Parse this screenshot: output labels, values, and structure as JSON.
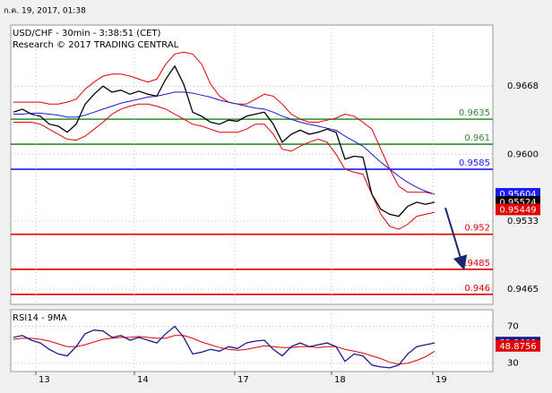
{
  "header": {
    "timestamp": "ก.ค. 19, 2017, 01:38"
  },
  "chart_data": [
    {
      "type": "line",
      "title": "USD/CHF - 30min - 3:38:51 (CET)",
      "subtitle": "Research © 2017 TRADING CENTRAL",
      "xlim": [
        -0.3,
        53.5
      ],
      "ylim": [
        0.945,
        0.9729
      ],
      "yticks": [
        0.9465,
        0.9533,
        {
          "value": 0.96,
          "label": "0.9600"
        },
        0.9668
      ],
      "grid": true,
      "x": [
        0,
        1,
        2,
        3,
        4,
        5,
        6,
        7,
        8,
        9,
        10,
        11,
        12,
        13,
        14,
        15,
        16,
        17,
        18,
        19,
        20,
        21,
        22,
        23,
        24,
        25,
        26,
        27,
        28,
        29,
        30,
        31,
        32,
        33,
        34,
        35,
        36,
        37,
        38,
        39,
        40,
        41,
        42,
        43,
        44,
        45,
        46,
        47
      ],
      "series": [
        {
          "color": "#e00000",
          "values": [
            0.9652,
            0.9652,
            0.9652,
            0.9652,
            0.965,
            0.965,
            0.9652,
            0.9655,
            0.9665,
            0.9672,
            0.9678,
            0.968,
            0.968,
            0.9678,
            0.9675,
            0.9672,
            0.9675,
            0.969,
            0.97,
            0.9702,
            0.97,
            0.969,
            0.967,
            0.9658,
            0.9652,
            0.965,
            0.965,
            0.9655,
            0.966,
            0.9658,
            0.965,
            0.964,
            0.9635,
            0.9632,
            0.9632,
            0.9634,
            0.9636,
            0.964,
            0.9638,
            0.9632,
            0.9625,
            0.9605,
            0.9585,
            0.9568,
            0.9562,
            0.9562,
            0.9562,
            0.956
          ]
        },
        {
          "color": "#e00000",
          "values": [
            0.9632,
            0.9632,
            0.9632,
            0.963,
            0.9625,
            0.962,
            0.9615,
            0.9614,
            0.9618,
            0.9625,
            0.9632,
            0.964,
            0.9645,
            0.9648,
            0.965,
            0.965,
            0.9648,
            0.9645,
            0.964,
            0.9635,
            0.963,
            0.9628,
            0.9625,
            0.9622,
            0.9622,
            0.9622,
            0.9625,
            0.963,
            0.963,
            0.962,
            0.9605,
            0.9603,
            0.9608,
            0.9612,
            0.9615,
            0.9612,
            0.96,
            0.9585,
            0.9582,
            0.958,
            0.956,
            0.954,
            0.9528,
            0.9525,
            0.953,
            0.9538,
            0.954,
            0.9542
          ]
        },
        {
          "color": "#1a1acc",
          "values": [
            0.964,
            0.964,
            0.9641,
            0.9641,
            0.964,
            0.9639,
            0.9637,
            0.9637,
            0.9639,
            0.9642,
            0.9645,
            0.9648,
            0.9651,
            0.9653,
            0.9655,
            0.9657,
            0.9658,
            0.966,
            0.9662,
            0.9662,
            0.9661,
            0.9659,
            0.9657,
            0.9654,
            0.9652,
            0.965,
            0.9648,
            0.9646,
            0.9645,
            0.9642,
            0.9638,
            0.9635,
            0.9632,
            0.963,
            0.9628,
            0.9626,
            0.9624,
            0.9618,
            0.9613,
            0.9608,
            0.96,
            0.9592,
            0.9585,
            0.9578,
            0.9572,
            0.9567,
            0.9563,
            0.956
          ]
        },
        {
          "color": "#000000",
          "values": [
            0.9642,
            0.9645,
            0.964,
            0.9638,
            0.963,
            0.9628,
            0.9622,
            0.963,
            0.965,
            0.966,
            0.9668,
            0.9662,
            0.9664,
            0.966,
            0.9663,
            0.966,
            0.9658,
            0.9675,
            0.9688,
            0.967,
            0.9642,
            0.9638,
            0.9632,
            0.963,
            0.9634,
            0.9633,
            0.9638,
            0.964,
            0.9642,
            0.963,
            0.9612,
            0.962,
            0.9624,
            0.962,
            0.9622,
            0.9625,
            0.9622,
            0.9595,
            0.9598,
            0.9597,
            0.956,
            0.9545,
            0.954,
            0.9538,
            0.9548,
            0.9552,
            0.955,
            0.9552
          ]
        }
      ],
      "levels": [
        {
          "value": 0.9635,
          "color": "#2e8b2e"
        },
        {
          "value": 0.961,
          "color": "#2e8b2e"
        },
        {
          "value": 0.9585,
          "color": "#1a1aff"
        },
        {
          "value": 0.952,
          "color": "#e00000"
        },
        {
          "value": 0.9485,
          "color": "#e00000"
        },
        {
          "value": 0.946,
          "color": "#e00000"
        }
      ],
      "price_tags": [
        {
          "value": 0.95604,
          "color": "#1a1aff"
        },
        {
          "value": 0.95524,
          "color": "#000000"
        },
        {
          "value": 0.95449,
          "color": "#e00000"
        }
      ]
    },
    {
      "type": "line",
      "title": "RSI14 - 9MA",
      "xlim": [
        -0.3,
        53.5
      ],
      "ylim": [
        21,
        88
      ],
      "yticks": [
        30,
        70
      ],
      "grid": true,
      "xticks": [
        {
          "value": 2.5,
          "label": "13"
        },
        {
          "value": 13.5,
          "label": "14"
        },
        {
          "value": 24.7,
          "label": "17"
        },
        {
          "value": 35.5,
          "label": "18"
        },
        {
          "value": 46.8,
          "label": "19"
        }
      ],
      "x": [
        0,
        1,
        2,
        3,
        4,
        5,
        6,
        7,
        8,
        9,
        10,
        11,
        12,
        13,
        14,
        15,
        16,
        17,
        18,
        19,
        20,
        21,
        22,
        23,
        24,
        25,
        26,
        27,
        28,
        29,
        30,
        31,
        32,
        33,
        34,
        35,
        36,
        37,
        38,
        39,
        40,
        41,
        42,
        43,
        44,
        45,
        46,
        47
      ],
      "series": [
        {
          "color": "#e00000",
          "values": [
            56,
            57,
            57,
            56,
            54,
            51,
            48,
            48,
            50,
            53,
            56,
            57,
            58,
            58,
            59,
            58,
            57,
            57,
            60,
            60,
            57,
            53,
            50,
            47,
            45,
            44,
            45,
            47,
            49,
            48,
            47,
            47,
            48,
            48,
            47,
            48,
            48,
            45,
            43,
            41,
            38,
            35,
            31,
            29,
            30,
            33,
            37,
            43
          ]
        },
        {
          "color": "#1a1a8c",
          "values": [
            58,
            60,
            55,
            52,
            45,
            40,
            38,
            48,
            62,
            66,
            65,
            58,
            60,
            55,
            58,
            55,
            52,
            62,
            70,
            58,
            40,
            42,
            45,
            43,
            48,
            46,
            52,
            54,
            55,
            45,
            38,
            48,
            52,
            48,
            50,
            52,
            48,
            32,
            40,
            38,
            28,
            26,
            25,
            28,
            40,
            48,
            50,
            52
          ]
        }
      ],
      "price_tags": [
        {
          "value": 52.3603,
          "color": "#1a1a8c"
        },
        {
          "value": 48.8756,
          "color": "#e00000"
        }
      ]
    }
  ]
}
